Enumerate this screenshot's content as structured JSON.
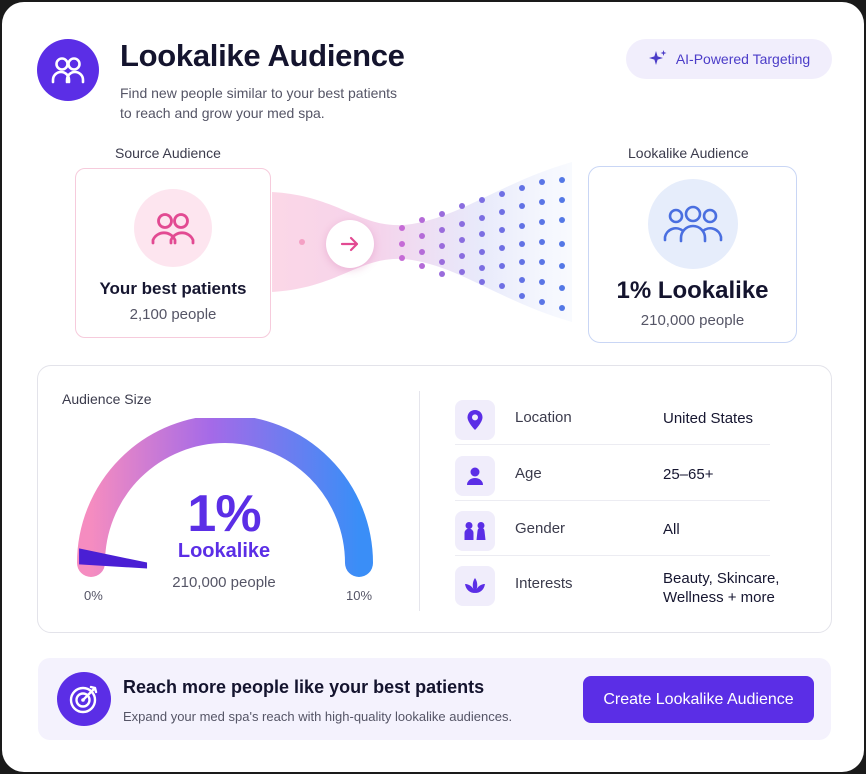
{
  "header": {
    "title": "Lookalike Audience",
    "subtitle_line1": "Find new people similar to your best patients",
    "subtitle_line2": "to reach and grow your med spa.",
    "icon": "users-icon",
    "badge_label": "AI-Powered Targeting",
    "badge_icon": "sparkle-icon"
  },
  "source": {
    "label": "Source Audience",
    "name": "Your best patients",
    "count": "2,100 people",
    "icon": "users-icon"
  },
  "lookalike": {
    "label": "Lookalike Audience",
    "name": "1% Lookalike",
    "count": "210,000 people",
    "icon": "group-icon"
  },
  "audience_size": {
    "label": "Audience Size",
    "percent": "1%",
    "sublabel": "Lookalike",
    "people": "210,000 people",
    "min_label": "0%",
    "max_label": "10%",
    "level_fraction": 0.1
  },
  "details": [
    {
      "label": "Location",
      "value": "United States",
      "icon": "location-pin-icon"
    },
    {
      "label": "Age",
      "value": "25–65+",
      "icon": "person-icon"
    },
    {
      "label": "Gender",
      "value": "All",
      "icon": "gender-icon"
    },
    {
      "label": "Interests",
      "value_line1": "Beauty, Skincare,",
      "value_line2": "Wellness + more",
      "icon": "lotus-icon"
    }
  ],
  "cta": {
    "title": "Reach more people like your best patients",
    "subtitle": "Expand your med spa's reach with high-quality lookalike audiences.",
    "button": "Create Lookalike Audience",
    "icon": "target-icon"
  },
  "colors": {
    "brand": "#5b2ee6",
    "pink": "#e24a92",
    "blue": "#4a6fe0"
  }
}
